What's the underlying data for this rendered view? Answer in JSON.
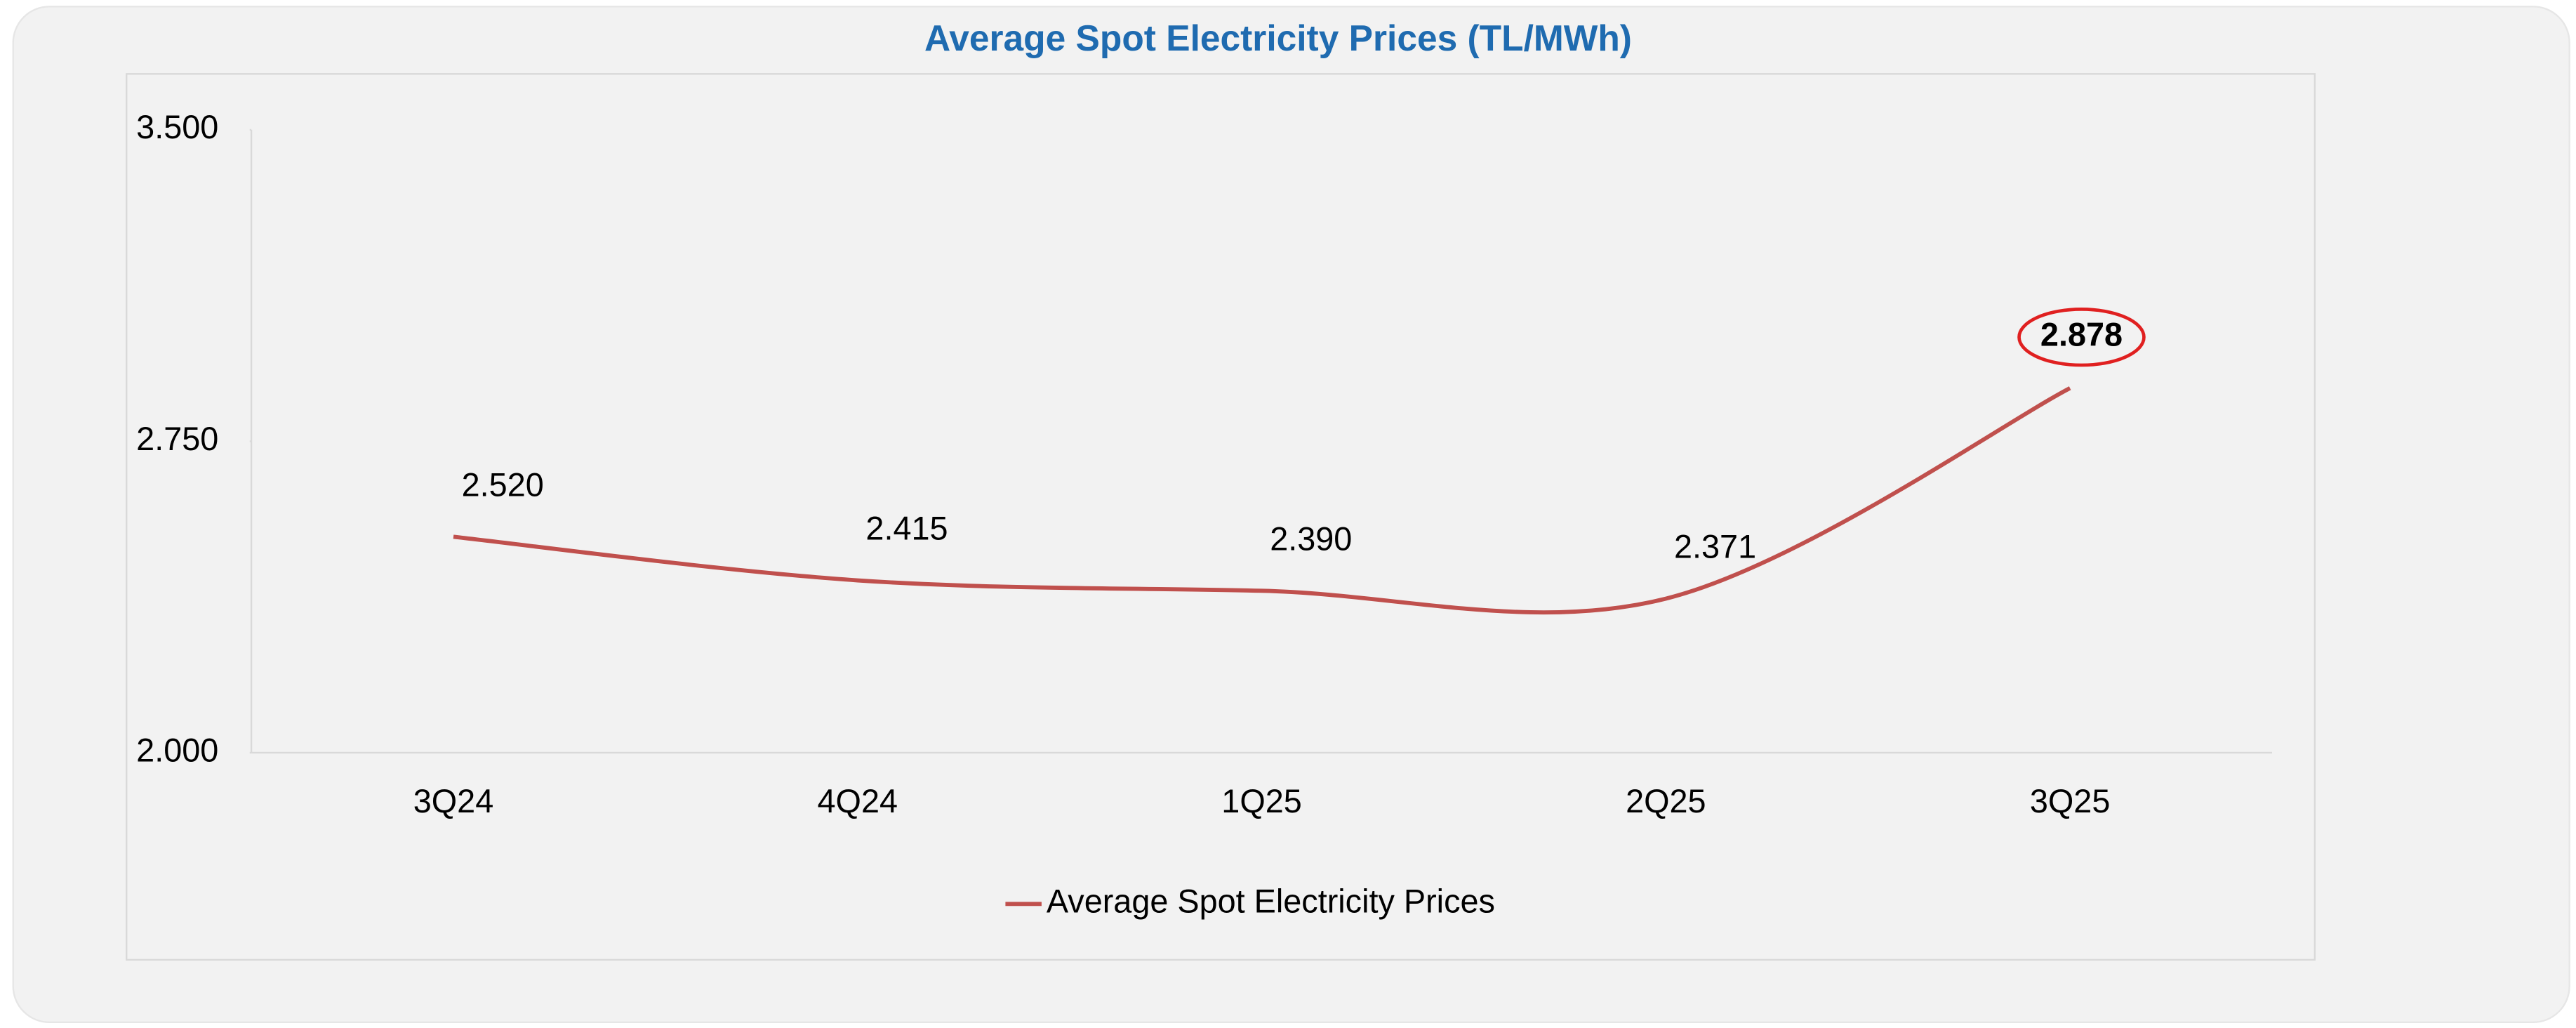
{
  "chart_data": {
    "type": "line",
    "title": "Average Spot Electricity Prices  (TL/MWh)",
    "categories": [
      "3Q24",
      "4Q24",
      "1Q25",
      "2Q25",
      "3Q25"
    ],
    "series": [
      {
        "name": "Average Spot Electricity Prices",
        "color": "#c0504d",
        "values": [
          2520,
          2415,
          2390,
          2371,
          2878
        ],
        "value_labels": [
          "2.520",
          "2.415",
          "2.390",
          "2.371",
          "2.878"
        ]
      }
    ],
    "ylim": [
      2000,
      3500
    ],
    "yticks": [
      {
        "value": 2000,
        "label": "2.000"
      },
      {
        "value": 2750,
        "label": "2.750"
      },
      {
        "value": 3500,
        "label": "3.500"
      }
    ],
    "smooth": true,
    "grid": false,
    "legend": "bottom"
  }
}
